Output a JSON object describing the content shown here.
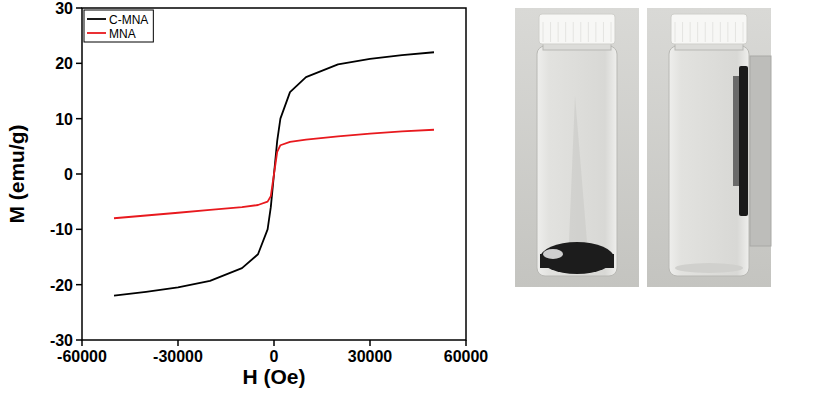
{
  "chart_data": {
    "type": "line",
    "x_label": "H (Oe)",
    "y_label": "M (emu/g)",
    "x": [
      -50000,
      -40000,
      -30000,
      -20000,
      -10000,
      -5000,
      -2000,
      -1000,
      0,
      1000,
      2000,
      5000,
      10000,
      20000,
      30000,
      40000,
      50000
    ],
    "series": [
      {
        "name": "C-MNA",
        "color": "#000000",
        "values": [
          -22,
          -21.3,
          -20.5,
          -19.3,
          -17,
          -14.5,
          -10,
          -6,
          0,
          6,
          10,
          14.8,
          17.5,
          19.8,
          20.8,
          21.5,
          22
        ]
      },
      {
        "name": "MNA",
        "color": "#e8191e",
        "values": [
          -8,
          -7.5,
          -7,
          -6.5,
          -6,
          -5.6,
          -5,
          -4,
          0,
          4,
          5.2,
          5.8,
          6.2,
          6.8,
          7.3,
          7.7,
          8
        ]
      }
    ],
    "xlim": [
      -60000,
      60000
    ],
    "xticks": [
      -60000,
      -30000,
      0,
      30000,
      60000
    ],
    "ylim": [
      -30,
      30
    ],
    "yticks": [
      -30,
      -20,
      -10,
      0,
      10,
      20,
      30
    ],
    "grid": false,
    "legend": "upper left"
  }
}
